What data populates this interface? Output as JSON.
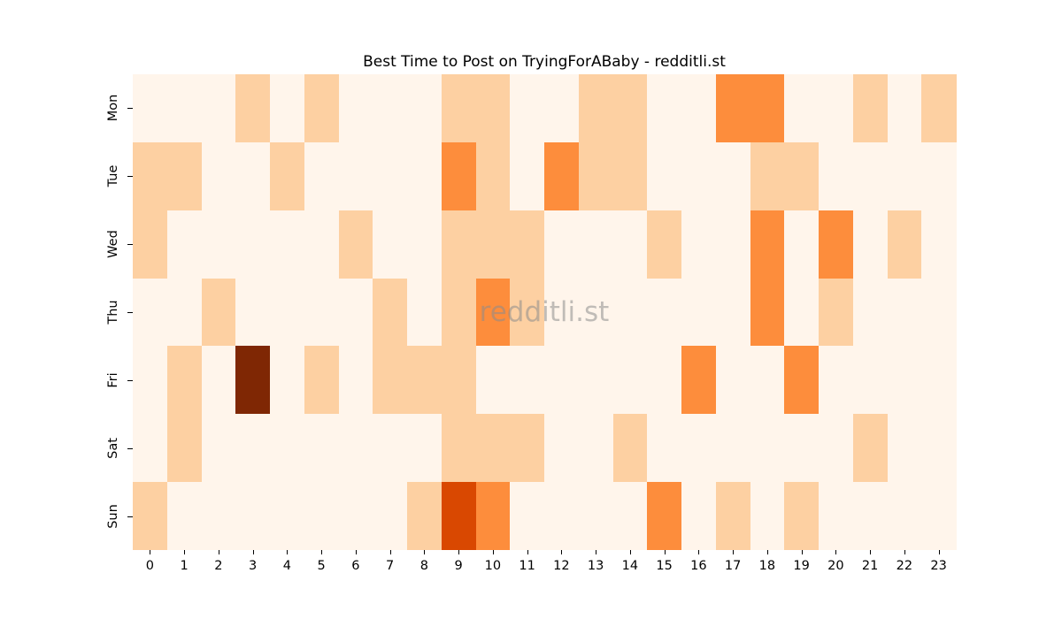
{
  "chart_data": {
    "type": "heatmap",
    "title": "Best Time to Post on TryingForABaby - redditli.st",
    "watermark": "redditli.st",
    "xlabel": "",
    "ylabel": "",
    "x_labels": [
      "0",
      "1",
      "2",
      "3",
      "4",
      "5",
      "6",
      "7",
      "8",
      "9",
      "10",
      "11",
      "12",
      "13",
      "14",
      "15",
      "16",
      "17",
      "18",
      "19",
      "20",
      "21",
      "22",
      "23"
    ],
    "y_labels": [
      "Mon",
      "Tue",
      "Wed",
      "Thu",
      "Fri",
      "Sat",
      "Sun"
    ],
    "legend": "none",
    "grid": false,
    "value_range": [
      0,
      4
    ],
    "colormap_name": "Oranges",
    "value_colors": {
      "0": "#fff5eb",
      "1": "#fdd0a2",
      "2": "#fd8d3c",
      "3": "#d94801",
      "4": "#7f2704"
    },
    "matrix": [
      [
        0,
        0,
        0,
        1,
        0,
        1,
        0,
        0,
        0,
        1,
        1,
        0,
        0,
        1,
        1,
        0,
        0,
        2,
        2,
        0,
        0,
        1,
        0,
        1
      ],
      [
        1,
        1,
        0,
        0,
        1,
        0,
        0,
        0,
        0,
        2,
        1,
        0,
        2,
        1,
        1,
        0,
        0,
        0,
        1,
        1,
        0,
        0,
        0,
        0
      ],
      [
        1,
        0,
        0,
        0,
        0,
        0,
        1,
        0,
        0,
        1,
        1,
        1,
        0,
        0,
        0,
        1,
        0,
        0,
        2,
        0,
        2,
        0,
        1,
        0
      ],
      [
        0,
        0,
        1,
        0,
        0,
        0,
        0,
        1,
        0,
        1,
        2,
        1,
        0,
        0,
        0,
        0,
        0,
        0,
        2,
        0,
        1,
        0,
        0,
        0
      ],
      [
        0,
        1,
        0,
        4,
        0,
        1,
        0,
        1,
        1,
        1,
        0,
        0,
        0,
        0,
        0,
        0,
        2,
        0,
        0,
        2,
        0,
        0,
        0,
        0
      ],
      [
        0,
        1,
        0,
        0,
        0,
        0,
        0,
        0,
        0,
        1,
        1,
        1,
        0,
        0,
        1,
        0,
        0,
        0,
        0,
        0,
        0,
        1,
        0,
        0
      ],
      [
        1,
        0,
        0,
        0,
        0,
        0,
        0,
        0,
        1,
        3,
        2,
        0,
        0,
        0,
        0,
        2,
        0,
        1,
        0,
        1,
        0,
        0,
        0,
        0
      ]
    ]
  }
}
